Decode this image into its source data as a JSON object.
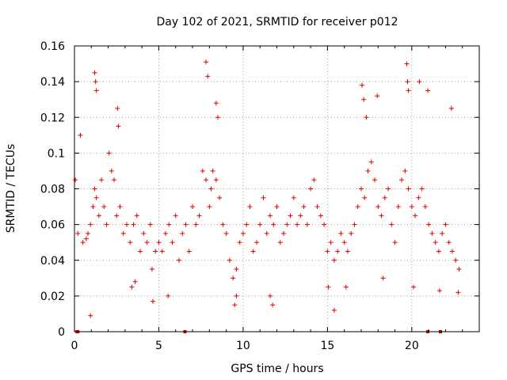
{
  "chart_data": {
    "type": "scatter",
    "title": "Day 102 of 2021, SRMTID for receiver p012",
    "xlabel": "GPS time / hours",
    "ylabel": "SRMTID / TECUs",
    "xlim": [
      0,
      24
    ],
    "ylim": [
      0,
      0.16
    ],
    "xticks": [
      0,
      5,
      10,
      15,
      20
    ],
    "xtick_labels": [
      "0",
      "5",
      "10",
      "15",
      "20"
    ],
    "yticks": [
      0,
      0.02,
      0.04,
      0.06,
      0.08,
      0.1,
      0.12,
      0.14,
      0.16
    ],
    "ytick_labels": [
      "0",
      "0.02",
      "0.04",
      "0.06",
      "0.08",
      "0.1",
      "0.12",
      "0.14",
      "0.16"
    ],
    "grid": true,
    "marker": "+",
    "color": "#e00000",
    "zero_values_x": [
      0.15,
      0.2,
      6.55,
      20.95,
      21.7
    ],
    "series": [
      {
        "name": "p012",
        "x": [
          0.05,
          0.2,
          0.35,
          0.5,
          0.7,
          0.8,
          0.95,
          1.1,
          1.2,
          1.3,
          1.45,
          1.6,
          1.75,
          1.9,
          2.05,
          2.2,
          2.35,
          2.5,
          2.7,
          2.9,
          3.1,
          3.3,
          3.5,
          3.7,
          3.9,
          4.1,
          4.3,
          4.5,
          4.6,
          4.8,
          5.0,
          5.2,
          5.4,
          5.6,
          5.8,
          6.0,
          6.2,
          6.4,
          6.6,
          6.8,
          7.0,
          7.2,
          7.4,
          7.6,
          7.8,
          8.0,
          8.1,
          8.2,
          8.4,
          8.6,
          8.8,
          9.0,
          9.2,
          9.4,
          9.6,
          9.8,
          10.0,
          10.2,
          10.4,
          10.6,
          10.8,
          11.0,
          11.2,
          11.4,
          11.6,
          11.8,
          12.0,
          12.2,
          12.4,
          12.6,
          12.8,
          13.0,
          13.2,
          13.4,
          13.6,
          13.8,
          14.0,
          14.2,
          14.4,
          14.6,
          14.8,
          15.0,
          15.2,
          15.4,
          15.6,
          15.8,
          16.0,
          16.2,
          16.4,
          16.6,
          16.8,
          17.0,
          17.2,
          17.4,
          17.6,
          17.8,
          18.0,
          18.2,
          18.4,
          18.6,
          18.8,
          19.0,
          19.2,
          19.4,
          19.6,
          19.8,
          20.0,
          20.2,
          20.4,
          20.6,
          20.8,
          21.0,
          21.2,
          21.4,
          21.6,
          21.8,
          22.0,
          22.2,
          22.4,
          22.6,
          22.8,
          1.2,
          1.25,
          1.3,
          7.8,
          7.9,
          8.4,
          8.5,
          19.7,
          19.75,
          19.8,
          20.95,
          2.55,
          2.6,
          17.05,
          17.15,
          17.3,
          17.95,
          20.45,
          22.35,
          0.95,
          3.4,
          3.6,
          4.65,
          5.55,
          9.5,
          9.6,
          11.6,
          11.75,
          15.05,
          15.4,
          16.1,
          18.3,
          20.1,
          21.65,
          22.75
        ],
        "y": [
          0.085,
          0.055,
          0.11,
          0.05,
          0.052,
          0.055,
          0.06,
          0.07,
          0.08,
          0.075,
          0.065,
          0.085,
          0.07,
          0.06,
          0.1,
          0.09,
          0.085,
          0.065,
          0.07,
          0.055,
          0.06,
          0.05,
          0.06,
          0.065,
          0.045,
          0.055,
          0.05,
          0.06,
          0.035,
          0.045,
          0.05,
          0.045,
          0.055,
          0.06,
          0.05,
          0.065,
          0.04,
          0.055,
          0.06,
          0.045,
          0.07,
          0.06,
          0.065,
          0.09,
          0.085,
          0.07,
          0.08,
          0.09,
          0.085,
          0.075,
          0.06,
          0.055,
          0.04,
          0.03,
          0.035,
          0.05,
          0.055,
          0.06,
          0.07,
          0.045,
          0.05,
          0.06,
          0.075,
          0.055,
          0.065,
          0.06,
          0.07,
          0.05,
          0.055,
          0.06,
          0.065,
          0.075,
          0.06,
          0.065,
          0.07,
          0.06,
          0.08,
          0.085,
          0.07,
          0.065,
          0.06,
          0.045,
          0.05,
          0.04,
          0.045,
          0.055,
          0.05,
          0.045,
          0.055,
          0.06,
          0.07,
          0.08,
          0.075,
          0.09,
          0.095,
          0.085,
          0.07,
          0.065,
          0.075,
          0.08,
          0.06,
          0.05,
          0.07,
          0.085,
          0.09,
          0.08,
          0.07,
          0.065,
          0.075,
          0.08,
          0.07,
          0.06,
          0.055,
          0.05,
          0.045,
          0.055,
          0.06,
          0.05,
          0.045,
          0.04,
          0.035,
          0.145,
          0.14,
          0.135,
          0.151,
          0.143,
          0.128,
          0.12,
          0.15,
          0.14,
          0.135,
          0.135,
          0.125,
          0.115,
          0.138,
          0.13,
          0.12,
          0.132,
          0.14,
          0.125,
          0.009,
          0.025,
          0.028,
          0.017,
          0.02,
          0.015,
          0.02,
          0.02,
          0.015,
          0.025,
          0.012,
          0.025,
          0.03,
          0.025,
          0.023,
          0.022
        ]
      }
    ]
  }
}
